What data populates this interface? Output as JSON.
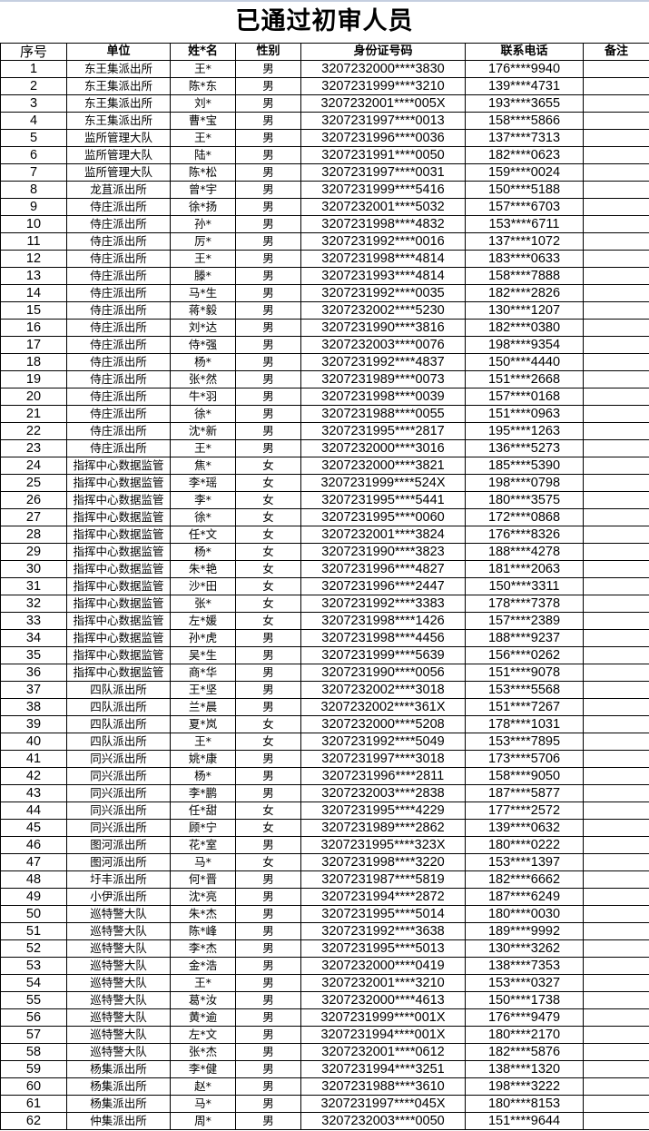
{
  "title": "已通过初审人员",
  "headers": [
    "序号",
    "单位",
    "姓*名",
    "性别",
    "身份证号码",
    "联系电话",
    "备注"
  ],
  "rows": [
    [
      "1",
      "东王集派出所",
      "王*",
      "男",
      "3207232000****3830",
      "176****9940",
      ""
    ],
    [
      "2",
      "东王集派出所",
      "陈*东",
      "男",
      "3207231999****3210",
      "139****4731",
      ""
    ],
    [
      "3",
      "东王集派出所",
      "刘*",
      "男",
      "3207232001****005X",
      "193****3655",
      ""
    ],
    [
      "4",
      "东王集派出所",
      "曹*宝",
      "男",
      "3207231997****0013",
      "158****5866",
      ""
    ],
    [
      "5",
      "监所管理大队",
      "王*",
      "男",
      "3207231996****0036",
      "137****7313",
      ""
    ],
    [
      "6",
      "监所管理大队",
      "陆*",
      "男",
      "3207231991****0050",
      "182****0623",
      ""
    ],
    [
      "7",
      "监所管理大队",
      "陈*松",
      "男",
      "3207231997****0031",
      "159****0024",
      ""
    ],
    [
      "8",
      "龙苴派出所",
      "曾*宇",
      "男",
      "3207231999****5416",
      "150****5188",
      ""
    ],
    [
      "9",
      "侍庄派出所",
      "徐*扬",
      "男",
      "3207232001****5032",
      "157****6703",
      ""
    ],
    [
      "10",
      "侍庄派出所",
      "孙*",
      "男",
      "3207231998****4832",
      "153****6711",
      ""
    ],
    [
      "11",
      "侍庄派出所",
      "厉*",
      "男",
      "3207231992****0016",
      "137****1072",
      ""
    ],
    [
      "12",
      "侍庄派出所",
      "王*",
      "男",
      "3207231998****4814",
      "183****0633",
      ""
    ],
    [
      "13",
      "侍庄派出所",
      "滕*",
      "男",
      "3207231993****4814",
      "158****7888",
      ""
    ],
    [
      "14",
      "侍庄派出所",
      "马*生",
      "男",
      "3207231992****0035",
      "182****2826",
      ""
    ],
    [
      "15",
      "侍庄派出所",
      "蒋*毅",
      "男",
      "3207232002****5230",
      "130****1207",
      ""
    ],
    [
      "16",
      "侍庄派出所",
      "刘*达",
      "男",
      "3207231990****3816",
      "182****0380",
      ""
    ],
    [
      "17",
      "侍庄派出所",
      "侍*强",
      "男",
      "3207232003****0076",
      "198****9354",
      ""
    ],
    [
      "18",
      "侍庄派出所",
      "杨*",
      "男",
      "3207231992****4837",
      "150****4440",
      ""
    ],
    [
      "19",
      "侍庄派出所",
      "张*然",
      "男",
      "3207231989****0073",
      "151****2668",
      ""
    ],
    [
      "20",
      "侍庄派出所",
      "牛*羽",
      "男",
      "3207231998****0039",
      "157****0168",
      ""
    ],
    [
      "21",
      "侍庄派出所",
      "徐*",
      "男",
      "3207231988****0055",
      "151****0963",
      ""
    ],
    [
      "22",
      "侍庄派出所",
      "沈*新",
      "男",
      "3207231995****2817",
      "195****1263",
      ""
    ],
    [
      "23",
      "侍庄派出所",
      "王*",
      "男",
      "3207232000****3016",
      "136****5273",
      ""
    ],
    [
      "24",
      "指挥中心数据监管",
      "焦*",
      "女",
      "3207232000****3821",
      "185****5390",
      ""
    ],
    [
      "25",
      "指挥中心数据监管",
      "李*瑶",
      "女",
      "3207231999****524X",
      "198****0798",
      ""
    ],
    [
      "26",
      "指挥中心数据监管",
      "李*",
      "女",
      "3207231995****5441",
      "180****3575",
      ""
    ],
    [
      "27",
      "指挥中心数据监管",
      "徐*",
      "女",
      "3207231995****0060",
      "172****0868",
      ""
    ],
    [
      "28",
      "指挥中心数据监管",
      "任*文",
      "女",
      "3207232001****3824",
      "176****8326",
      ""
    ],
    [
      "29",
      "指挥中心数据监管",
      "杨*",
      "女",
      "3207231990****3823",
      "188****4278",
      ""
    ],
    [
      "30",
      "指挥中心数据监管",
      "朱*艳",
      "女",
      "3207231996****4827",
      "181****2063",
      ""
    ],
    [
      "31",
      "指挥中心数据监管",
      "沙*田",
      "女",
      "3207231996****2447",
      "150****3311",
      ""
    ],
    [
      "32",
      "指挥中心数据监管",
      "张*",
      "女",
      "3207231992****3383",
      "178****7378",
      ""
    ],
    [
      "33",
      "指挥中心数据监管",
      "左*媛",
      "女",
      "3207231998****1426",
      "157****2389",
      ""
    ],
    [
      "34",
      "指挥中心数据监管",
      "孙*虎",
      "男",
      "3207231998****4456",
      "188****9237",
      ""
    ],
    [
      "35",
      "指挥中心数据监管",
      "吴*生",
      "男",
      "3207231999****5639",
      "156****0262",
      ""
    ],
    [
      "36",
      "指挥中心数据监管",
      "商*华",
      "男",
      "3207231990****0056",
      "151****9078",
      ""
    ],
    [
      "37",
      "四队派出所",
      "王*坚",
      "男",
      "3207232002****3018",
      "153****5568",
      ""
    ],
    [
      "38",
      "四队派出所",
      "兰*晨",
      "男",
      "3207232002****361X",
      "151****7267",
      ""
    ],
    [
      "39",
      "四队派出所",
      "夏*岚",
      "女",
      "3207232000****5208",
      "178****1031",
      ""
    ],
    [
      "40",
      "四队派出所",
      "王*",
      "女",
      "3207231992****5049",
      "153****7895",
      ""
    ],
    [
      "41",
      "同兴派出所",
      "姚*康",
      "男",
      "3207231997****3018",
      "173****5706",
      ""
    ],
    [
      "42",
      "同兴派出所",
      "杨*",
      "男",
      "3207231996****2811",
      "158****9050",
      ""
    ],
    [
      "43",
      "同兴派出所",
      "李*鹏",
      "男",
      "3207232003****2838",
      "187****5877",
      ""
    ],
    [
      "44",
      "同兴派出所",
      "任*甜",
      "女",
      "3207231995****4229",
      "177****2572",
      ""
    ],
    [
      "45",
      "同兴派出所",
      "顾*宁",
      "女",
      "3207231989****2862",
      "139****0632",
      ""
    ],
    [
      "46",
      "图河派出所",
      "花*室",
      "男",
      "3207231995****323X",
      "180****0222",
      ""
    ],
    [
      "47",
      "图河派出所",
      "马*",
      "女",
      "3207231998****3220",
      "153****1397",
      ""
    ],
    [
      "48",
      "圩丰派出所",
      "何*晋",
      "男",
      "3207231987****5819",
      "182****6662",
      ""
    ],
    [
      "49",
      "小伊派出所",
      "沈*亮",
      "男",
      "3207231994****2872",
      "187****6249",
      ""
    ],
    [
      "50",
      "巡特警大队",
      "朱*杰",
      "男",
      "3207231995****5014",
      "180****0030",
      ""
    ],
    [
      "51",
      "巡特警大队",
      "陈*峰",
      "男",
      "3207231992****3638",
      "189****9992",
      ""
    ],
    [
      "52",
      "巡特警大队",
      "李*杰",
      "男",
      "3207231995****5013",
      "130****3262",
      ""
    ],
    [
      "53",
      "巡特警大队",
      "金*浩",
      "男",
      "3207232000****0419",
      "138****7353",
      ""
    ],
    [
      "54",
      "巡特警大队",
      "王*",
      "男",
      "3207232001****3210",
      "153****0327",
      ""
    ],
    [
      "55",
      "巡特警大队",
      "葛*汝",
      "男",
      "3207232000****4613",
      "150****1738",
      ""
    ],
    [
      "56",
      "巡特警大队",
      "黄*逾",
      "男",
      "3207231999****001X",
      "176****9479",
      ""
    ],
    [
      "57",
      "巡特警大队",
      "左*文",
      "男",
      "3207231994****001X",
      "180****2170",
      ""
    ],
    [
      "58",
      "巡特警大队",
      "张*杰",
      "男",
      "3207232001****0612",
      "182****5876",
      ""
    ],
    [
      "59",
      "杨集派出所",
      "李*健",
      "男",
      "3207231994****3251",
      "138****1320",
      ""
    ],
    [
      "60",
      "杨集派出所",
      "赵*",
      "男",
      "3207231988****3610",
      "198****3222",
      ""
    ],
    [
      "61",
      "杨集派出所",
      "马*",
      "男",
      "3207231997****045X",
      "180****8153",
      ""
    ],
    [
      "62",
      "仲集派出所",
      "周*",
      "男",
      "3207232003****0050",
      "151****9644",
      ""
    ]
  ]
}
